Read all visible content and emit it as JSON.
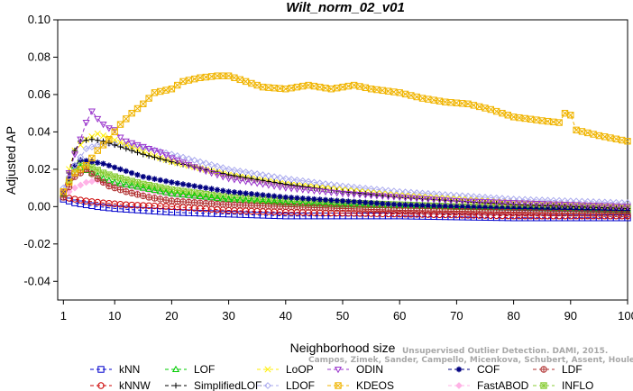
{
  "chart_data": {
    "type": "line",
    "title": "Wilt_norm_02_v01",
    "xlabel": "Neighborhood size",
    "ylabel": "Adjusted AP",
    "xlim": [
      0,
      100
    ],
    "ylim": [
      -0.05,
      0.1
    ],
    "xticks": [
      "1",
      "10",
      "20",
      "30",
      "40",
      "50",
      "60",
      "70",
      "80",
      "90",
      "100"
    ],
    "yticks": [
      "-0.04",
      "-0.02",
      "0.00",
      "0.02",
      "0.04",
      "0.06",
      "0.08",
      "0.10"
    ],
    "legend_position": "bottom",
    "watermark_lines": [
      "Unsupervised Outlier Detection. DAMI, 2015.",
      "Campos, Zimek, Sander, Campello, Micenkova, Schubert, Assent, Houle"
    ],
    "series": [
      {
        "name": "kNN",
        "color": "#0000cc",
        "marker": "square",
        "points": [
          [
            1,
            0.004
          ],
          [
            3,
            0.002
          ],
          [
            5,
            0.001
          ],
          [
            7,
            0
          ],
          [
            10,
            -0.001
          ],
          [
            15,
            -0.002
          ],
          [
            20,
            -0.003
          ],
          [
            30,
            -0.004
          ],
          [
            40,
            -0.005
          ],
          [
            60,
            -0.005
          ],
          [
            80,
            -0.006
          ],
          [
            100,
            -0.006
          ]
        ]
      },
      {
        "name": "kNNW",
        "color": "#cc0000",
        "marker": "circle",
        "points": [
          [
            1,
            0.005
          ],
          [
            3,
            0.004
          ],
          [
            5,
            0.003
          ],
          [
            8,
            0.002
          ],
          [
            12,
            0.001
          ],
          [
            20,
            0
          ],
          [
            30,
            -0.002
          ],
          [
            40,
            -0.003
          ],
          [
            60,
            -0.004
          ],
          [
            80,
            -0.005
          ],
          [
            100,
            -0.005
          ]
        ]
      },
      {
        "name": "LOF",
        "color": "#00cc00",
        "marker": "triangle-up",
        "points": [
          [
            1,
            0.007
          ],
          [
            2,
            0.015
          ],
          [
            3,
            0.022
          ],
          [
            4,
            0.021
          ],
          [
            6,
            0.018
          ],
          [
            8,
            0.015
          ],
          [
            10,
            0.013
          ],
          [
            15,
            0.01
          ],
          [
            20,
            0.007
          ],
          [
            30,
            0.004
          ],
          [
            40,
            0.002
          ],
          [
            50,
            0.001
          ],
          [
            70,
            0
          ],
          [
            100,
            -0.002
          ]
        ]
      },
      {
        "name": "SimplifiedLOF",
        "color": "#000000",
        "marker": "plus",
        "points": [
          [
            1,
            0.008
          ],
          [
            2,
            0.018
          ],
          [
            3,
            0.03
          ],
          [
            4,
            0.035
          ],
          [
            6,
            0.036
          ],
          [
            8,
            0.035
          ],
          [
            10,
            0.033
          ],
          [
            15,
            0.028
          ],
          [
            20,
            0.024
          ],
          [
            30,
            0.017
          ],
          [
            40,
            0.012
          ],
          [
            50,
            0.008
          ],
          [
            60,
            0.005
          ],
          [
            70,
            0.003
          ],
          [
            80,
            0.001
          ],
          [
            90,
            0
          ],
          [
            100,
            -0.001
          ]
        ]
      },
      {
        "name": "LoOP",
        "color": "#ffee00",
        "marker": "x",
        "points": [
          [
            1,
            0.008
          ],
          [
            2,
            0.02
          ],
          [
            3,
            0.03
          ],
          [
            5,
            0.036
          ],
          [
            7,
            0.039
          ],
          [
            9,
            0.037
          ],
          [
            12,
            0.033
          ],
          [
            16,
            0.028
          ],
          [
            20,
            0.024
          ],
          [
            30,
            0.017
          ],
          [
            40,
            0.012
          ],
          [
            50,
            0.009
          ],
          [
            60,
            0.006
          ],
          [
            70,
            0.004
          ],
          [
            80,
            0.002
          ],
          [
            90,
            0.001
          ],
          [
            100,
            0
          ]
        ]
      },
      {
        "name": "LDOF",
        "color": "#aaaaee",
        "marker": "diamond",
        "points": [
          [
            1,
            0.01
          ],
          [
            3,
            0.022
          ],
          [
            5,
            0.031
          ],
          [
            8,
            0.034
          ],
          [
            12,
            0.033
          ],
          [
            16,
            0.031
          ],
          [
            20,
            0.028
          ],
          [
            30,
            0.02
          ],
          [
            40,
            0.015
          ],
          [
            50,
            0.011
          ],
          [
            60,
            0.008
          ],
          [
            70,
            0.006
          ],
          [
            80,
            0.004
          ],
          [
            90,
            0.003
          ],
          [
            100,
            0.002
          ]
        ]
      },
      {
        "name": "ODIN",
        "color": "#9933cc",
        "marker": "triangle-down",
        "points": [
          [
            1,
            0.008
          ],
          [
            2,
            0.018
          ],
          [
            3,
            0.028
          ],
          [
            4,
            0.036
          ],
          [
            5,
            0.045
          ],
          [
            6,
            0.051
          ],
          [
            7,
            0.047
          ],
          [
            8,
            0.044
          ],
          [
            9,
            0.042
          ],
          [
            10,
            0.041
          ],
          [
            11,
            0.037
          ],
          [
            12,
            0.035
          ],
          [
            14,
            0.033
          ],
          [
            16,
            0.031
          ],
          [
            18,
            0.029
          ],
          [
            20,
            0.026
          ],
          [
            25,
            0.02
          ],
          [
            30,
            0.015
          ],
          [
            40,
            0.01
          ],
          [
            50,
            0.007
          ],
          [
            60,
            0.005
          ],
          [
            70,
            0.003
          ],
          [
            80,
            0.002
          ],
          [
            90,
            0.001
          ],
          [
            100,
            0
          ]
        ]
      },
      {
        "name": "KDEOS",
        "color": "#f0b400",
        "marker": "square-x",
        "points": [
          [
            1,
            0.008
          ],
          [
            3,
            0.018
          ],
          [
            5,
            0.022
          ],
          [
            7,
            0.03
          ],
          [
            9,
            0.036
          ],
          [
            11,
            0.044
          ],
          [
            13,
            0.05
          ],
          [
            15,
            0.055
          ],
          [
            17,
            0.061
          ],
          [
            20,
            0.063
          ],
          [
            22,
            0.067
          ],
          [
            25,
            0.069
          ],
          [
            28,
            0.07
          ],
          [
            30,
            0.07
          ],
          [
            33,
            0.067
          ],
          [
            36,
            0.064
          ],
          [
            40,
            0.063
          ],
          [
            44,
            0.065
          ],
          [
            48,
            0.063
          ],
          [
            52,
            0.065
          ],
          [
            55,
            0.063
          ],
          [
            60,
            0.061
          ],
          [
            64,
            0.058
          ],
          [
            68,
            0.056
          ],
          [
            72,
            0.055
          ],
          [
            76,
            0.052
          ],
          [
            80,
            0.048
          ],
          [
            85,
            0.046
          ],
          [
            88,
            0.045
          ],
          [
            89,
            0.05
          ],
          [
            90,
            0.049
          ],
          [
            91,
            0.041
          ],
          [
            95,
            0.038
          ],
          [
            100,
            0.035
          ]
        ]
      },
      {
        "name": "COF",
        "color": "#000080",
        "marker": "asterisk",
        "points": [
          [
            1,
            0.007
          ],
          [
            2,
            0.015
          ],
          [
            3,
            0.022
          ],
          [
            4,
            0.025
          ],
          [
            6,
            0.024
          ],
          [
            8,
            0.023
          ],
          [
            10,
            0.021
          ],
          [
            15,
            0.016
          ],
          [
            20,
            0.013
          ],
          [
            30,
            0.008
          ],
          [
            40,
            0.005
          ],
          [
            50,
            0.003
          ],
          [
            60,
            0.001
          ],
          [
            70,
            0
          ],
          [
            80,
            -0.001
          ],
          [
            100,
            -0.002
          ]
        ]
      },
      {
        "name": "FastABOD",
        "color": "#ffb3e6",
        "marker": "diamond-filled",
        "points": [
          [
            1,
            0.006
          ],
          [
            3,
            0.01
          ],
          [
            5,
            0.013
          ],
          [
            7,
            0.014
          ],
          [
            10,
            0.012
          ],
          [
            15,
            0.009
          ],
          [
            20,
            0.006
          ],
          [
            30,
            0.003
          ],
          [
            40,
            0.002
          ],
          [
            50,
            0.001
          ],
          [
            70,
            0
          ],
          [
            100,
            -0.001
          ]
        ]
      },
      {
        "name": "LDF",
        "color": "#b03030",
        "marker": "circle-plus",
        "points": [
          [
            1,
            0.005
          ],
          [
            3,
            0.016
          ],
          [
            5,
            0.02
          ],
          [
            7,
            0.015
          ],
          [
            9,
            0.011
          ],
          [
            12,
            0.008
          ],
          [
            16,
            0.005
          ],
          [
            20,
            0.003
          ],
          [
            30,
            0.001
          ],
          [
            40,
            0
          ],
          [
            60,
            -0.002
          ],
          [
            80,
            -0.003
          ],
          [
            100,
            -0.004
          ]
        ]
      },
      {
        "name": "INFLO",
        "color": "#88cc33",
        "marker": "square-star",
        "points": [
          [
            1,
            0.007
          ],
          [
            2,
            0.014
          ],
          [
            3,
            0.02
          ],
          [
            4,
            0.023
          ],
          [
            6,
            0.021
          ],
          [
            8,
            0.018
          ],
          [
            10,
            0.016
          ],
          [
            15,
            0.012
          ],
          [
            20,
            0.009
          ],
          [
            30,
            0.005
          ],
          [
            40,
            0.003
          ],
          [
            50,
            0.002
          ],
          [
            70,
            0
          ],
          [
            100,
            -0.001
          ]
        ]
      }
    ]
  }
}
